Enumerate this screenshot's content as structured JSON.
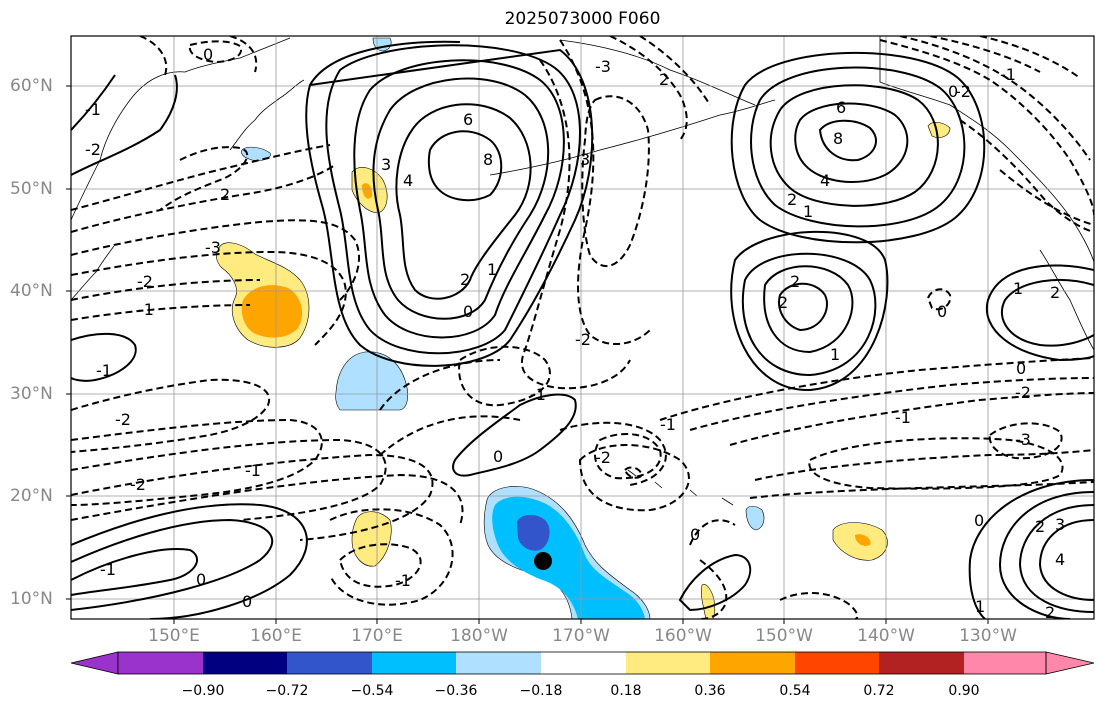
{
  "title": "2025073000 F060",
  "lat_labels": [
    {
      "text": "60°N",
      "lat": 60
    },
    {
      "text": "50°N",
      "lat": 50
    },
    {
      "text": "40°N",
      "lat": 40
    },
    {
      "text": "30°N",
      "lat": 30
    },
    {
      "text": "20°N",
      "lat": 20
    },
    {
      "text": "10°N",
      "lat": 10
    }
  ],
  "lon_labels": [
    {
      "text": "150°E",
      "lon": 150
    },
    {
      "text": "160°E",
      "lon": 160
    },
    {
      "text": "170°E",
      "lon": 170
    },
    {
      "text": "180°W",
      "lon": 180
    },
    {
      "text": "170°W",
      "lon": 190
    },
    {
      "text": "160°W",
      "lon": 200
    },
    {
      "text": "150°W",
      "lon": 210
    },
    {
      "text": "140°W",
      "lon": 220
    },
    {
      "text": "130°W",
      "lon": 230
    }
  ],
  "colorbar": {
    "ticks": [
      "−0.90",
      "−0.72",
      "−0.54",
      "−0.36",
      "−0.18",
      "0.18",
      "0.36",
      "0.54",
      "0.72",
      "0.90"
    ],
    "colors": [
      "#9933cc",
      "#000080",
      "#3355cc",
      "#00bfff",
      "#b0e0ff",
      "#ffffff",
      "#ffeb80",
      "#ffa500",
      "#ff4500",
      "#b22222",
      "#ff88aa"
    ]
  },
  "contour_labels": [
    "0",
    "2",
    "6",
    "8",
    "3",
    "4",
    "2",
    "1",
    "0",
    "3",
    "2",
    "6",
    "8",
    "4",
    "2",
    "1",
    "2",
    "2",
    "1",
    "0",
    "-2",
    "-1",
    "-3",
    "0",
    "1",
    "2",
    "-2",
    "-1",
    "0",
    "-1",
    "0",
    "-2",
    "2",
    "3",
    "4",
    "1",
    "2",
    "0",
    "-1",
    "-1",
    "0",
    "-1",
    "-2",
    "0",
    "-3",
    "-1",
    "-2",
    "-3",
    "-2",
    "-1",
    "0",
    "-2",
    "-1",
    "-2",
    "-1"
  ],
  "storm_marker": {
    "lon": 186.5,
    "lat": 13.8
  }
}
